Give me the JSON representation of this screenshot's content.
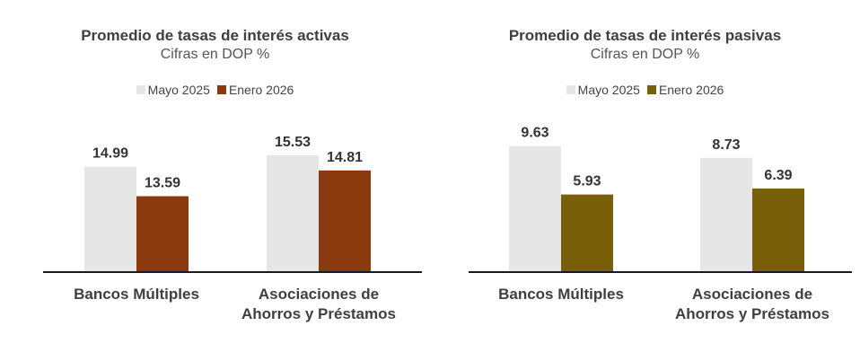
{
  "chart_data": [
    {
      "type": "bar",
      "title": "Promedio de tasas de interés activas",
      "subtitle": "Cifras en DOP %",
      "categories": [
        "Bancos Múltiples",
        "Asociaciones de\nAhorros y Préstamos"
      ],
      "series": [
        {
          "name": "Mayo 2025",
          "values": [
            14.99,
            15.53
          ],
          "color": "#e6e6e6"
        },
        {
          "name": "Enero 2026",
          "values": [
            13.59,
            14.81
          ],
          "color": "#8b3a0f"
        }
      ],
      "legend_position": "top",
      "grid": false,
      "ylim": [
        10,
        16.5
      ]
    },
    {
      "type": "bar",
      "title": "Promedio de tasas de interés pasivas",
      "subtitle": "Cifras en DOP %",
      "categories": [
        "Bancos Múltiples",
        "Asociaciones de\nAhorros y Préstamos"
      ],
      "series": [
        {
          "name": "Mayo 2025",
          "values": [
            9.63,
            8.73
          ],
          "color": "#e6e6e6"
        },
        {
          "name": "Enero 2026",
          "values": [
            5.93,
            6.39
          ],
          "color": "#7a5f0a"
        }
      ],
      "legend_position": "top",
      "grid": false,
      "ylim": [
        0,
        10.5
      ]
    }
  ]
}
